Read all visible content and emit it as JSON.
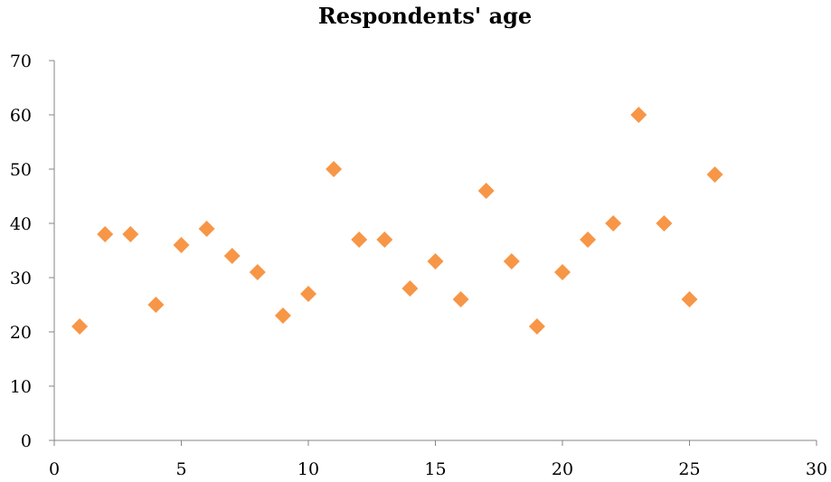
{
  "chart_data": {
    "type": "scatter",
    "title": "Respondents' age",
    "xlabel": "",
    "ylabel": "",
    "xlim": [
      0,
      30
    ],
    "ylim": [
      0,
      70
    ],
    "x_ticks": [
      0,
      5,
      10,
      15,
      20,
      25,
      30
    ],
    "y_ticks": [
      0,
      10,
      20,
      30,
      40,
      50,
      60,
      70
    ],
    "grid": false,
    "legend": "none",
    "marker": "diamond",
    "marker_color": "#F79646",
    "series": [
      {
        "x": [
          1,
          2,
          3,
          4,
          5,
          6,
          7,
          8,
          9,
          10,
          11,
          12,
          13,
          14,
          15,
          16,
          17,
          18,
          19,
          20,
          21,
          22,
          23,
          24,
          25,
          26
        ],
        "y": [
          21,
          38,
          38,
          25,
          36,
          39,
          34,
          31,
          23,
          27,
          50,
          37,
          37,
          28,
          33,
          26,
          46,
          33,
          21,
          31,
          37,
          40,
          60,
          40,
          26,
          49
        ]
      }
    ]
  }
}
